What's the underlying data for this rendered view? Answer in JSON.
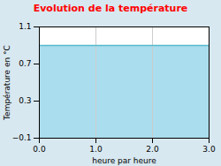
{
  "chart_data": {
    "type": "line",
    "title": "Evolution de la température",
    "xlabel": "heure par heure",
    "ylabel": "Température en °C",
    "x": [
      0,
      3
    ],
    "values": [
      0.9,
      0.9
    ],
    "color": "#55bbcc",
    "xlim": [
      0,
      3
    ],
    "ylim": [
      -0.1,
      1.1
    ],
    "xticks": [
      0,
      1,
      2,
      3
    ],
    "yticks": [
      -0.1,
      0.3,
      0.7,
      1.1
    ],
    "grid": "x"
  }
}
